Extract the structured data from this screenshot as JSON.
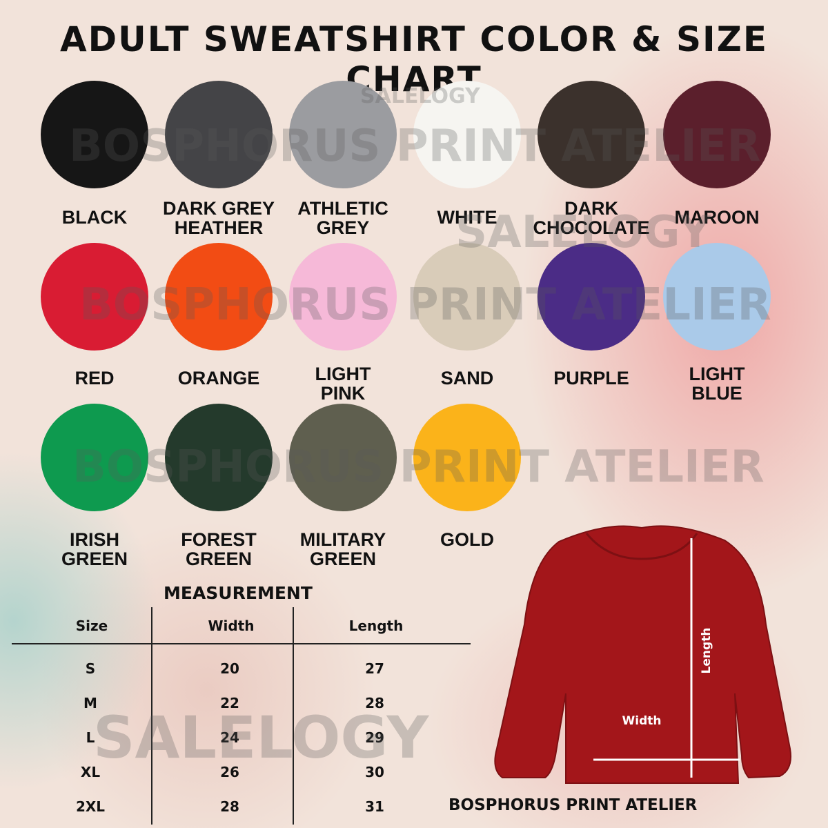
{
  "title": "ADULT SWEATSHIRT COLOR & SIZE CHART",
  "watermarks": {
    "salelogy": "SALELOGY",
    "bosphorus": "BOSPHORUS PRINT ATELIER"
  },
  "colors": [
    {
      "lines": [
        "BLACK"
      ],
      "hex": "#161616"
    },
    {
      "lines": [
        "DARK GREY",
        "HEATHER"
      ],
      "hex": "#444447"
    },
    {
      "lines": [
        "ATHLETIC",
        "GREY"
      ],
      "hex": "#9b9ca0"
    },
    {
      "lines": [
        "WHITE"
      ],
      "hex": "#f6f5f1"
    },
    {
      "lines": [
        "DARK",
        "CHOCOLATE"
      ],
      "hex": "#3b312c"
    },
    {
      "lines": [
        "MAROON"
      ],
      "hex": "#5b1f2c"
    },
    {
      "lines": [
        "RED"
      ],
      "hex": "#d91c33"
    },
    {
      "lines": [
        "ORANGE"
      ],
      "hex": "#f24c14"
    },
    {
      "lines": [
        "LIGHT",
        "PINK"
      ],
      "hex": "#f6b9d8"
    },
    {
      "lines": [
        "SAND"
      ],
      "hex": "#d9ccb9"
    },
    {
      "lines": [
        "PURPLE"
      ],
      "hex": "#4b2c86"
    },
    {
      "lines": [
        "LIGHT",
        "BLUE"
      ],
      "hex": "#aacae9"
    },
    {
      "lines": [
        "IRISH",
        "GREEN"
      ],
      "hex": "#0e9a4f"
    },
    {
      "lines": [
        "FOREST",
        "GREEN"
      ],
      "hex": "#243a2c"
    },
    {
      "lines": [
        "MILITARY",
        "GREEN"
      ],
      "hex": "#5f5f4f"
    },
    {
      "lines": [
        "GOLD"
      ],
      "hex": "#fbb31a"
    }
  ],
  "measurement": {
    "heading": "MEASUREMENT",
    "columns": [
      "Size",
      "Width",
      "Length"
    ],
    "rows": [
      [
        "S",
        "20",
        "27"
      ],
      [
        "M",
        "22",
        "28"
      ],
      [
        "L",
        "24",
        "29"
      ],
      [
        "XL",
        "26",
        "30"
      ],
      [
        "2XL",
        "28",
        "31"
      ]
    ]
  },
  "diagram": {
    "width_label": "Width",
    "length_label": "Length",
    "shirt_color": "#a3161a"
  },
  "brand": "BOSPHORUS PRINT ATELIER"
}
